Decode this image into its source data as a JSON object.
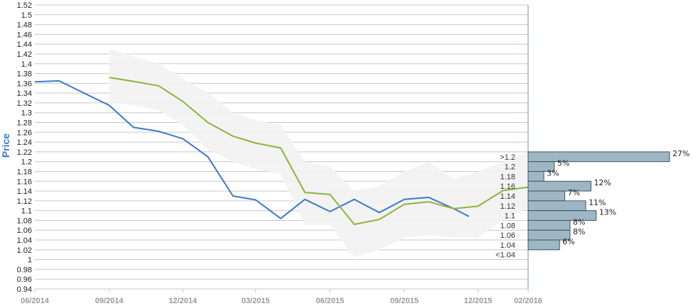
{
  "chart_data": {
    "type": "line",
    "ylabel": "Price",
    "ylim": [
      0.94,
      1.52
    ],
    "ytick_step": 0.02,
    "grid": true,
    "x_ticks": [
      "06/2014",
      "09/2014",
      "12/2014",
      "03/2015",
      "06/2015",
      "09/2015",
      "12/2015",
      "02/2016"
    ],
    "x_tick_dates": [
      "2014-06-01",
      "2014-09-01",
      "2014-12-01",
      "2015-03-01",
      "2015-06-01",
      "2015-09-01",
      "2015-12-01",
      "2016-02-01"
    ],
    "xlim": [
      "2014-06-01",
      "2016-02-01"
    ],
    "series": [
      {
        "color": "#3a7ac8",
        "x": [
          "2014-06-01",
          "2014-07-01",
          "2014-09-01",
          "2014-10-01",
          "2014-11-01",
          "2014-12-01",
          "2015-01-01",
          "2015-02-01",
          "2015-03-01",
          "2015-04-01",
          "2015-05-01",
          "2015-06-01",
          "2015-07-01",
          "2015-08-01",
          "2015-09-01",
          "2015-10-01",
          "2015-11-01",
          "2015-11-20"
        ],
        "y": [
          1.363,
          1.365,
          1.315,
          1.27,
          1.262,
          1.247,
          1.21,
          1.13,
          1.122,
          1.084,
          1.123,
          1.098,
          1.123,
          1.096,
          1.123,
          1.127,
          1.104,
          1.088
        ]
      },
      {
        "color": "#8db43c",
        "x": [
          "2014-09-01",
          "2014-10-01",
          "2014-11-01",
          "2014-12-01",
          "2015-01-01",
          "2015-02-01",
          "2015-03-01",
          "2015-04-01",
          "2015-05-01",
          "2015-06-01",
          "2015-07-01",
          "2015-08-01",
          "2015-09-01",
          "2015-10-01",
          "2015-11-01",
          "2015-12-01",
          "2016-01-01",
          "2016-02-01",
          "2016-02-05"
        ],
        "y": [
          1.372,
          1.364,
          1.355,
          1.323,
          1.28,
          1.252,
          1.238,
          1.228,
          1.137,
          1.133,
          1.072,
          1.082,
          1.113,
          1.118,
          1.104,
          1.109,
          1.141,
          1.148,
          1.135
        ]
      }
    ],
    "band": {
      "color": "#f2f2f2",
      "x": [
        "2014-09-01",
        "2014-10-01",
        "2014-11-01",
        "2014-12-01",
        "2015-01-01",
        "2015-02-01",
        "2015-03-01",
        "2015-04-01",
        "2015-05-01",
        "2015-06-01",
        "2015-07-01",
        "2015-08-01",
        "2015-09-01",
        "2015-10-01",
        "2015-11-01",
        "2015-12-01",
        "2016-01-01",
        "2016-02-01"
      ],
      "upper": [
        1.43,
        1.415,
        1.4,
        1.37,
        1.34,
        1.3,
        1.285,
        1.275,
        1.2,
        1.19,
        1.14,
        1.15,
        1.18,
        1.2,
        1.165,
        1.18,
        1.2,
        1.22
      ],
      "lower": [
        1.32,
        1.315,
        1.305,
        1.275,
        1.225,
        1.2,
        1.185,
        1.175,
        1.07,
        1.07,
        1.005,
        1.02,
        1.045,
        1.05,
        1.045,
        1.045,
        1.08,
        1.105
      ]
    },
    "distribution": {
      "type": "bar",
      "orientation": "horizontal",
      "color": "#9fb6c5",
      "categories": [
        ">1.2",
        "1.2",
        "1.18",
        "1.16",
        "1.14",
        "1.12",
        "1.1",
        "1.08",
        "1.06",
        "1.04",
        "<1.04"
      ],
      "values": [
        27,
        5,
        3,
        12,
        7,
        11,
        13,
        8,
        8,
        6,
        0
      ],
      "labels": [
        "27%",
        "5%",
        "3%",
        "12%",
        "7%",
        "11%",
        "13%",
        "8%",
        "8%",
        "6%",
        ""
      ],
      "y_values": [
        1.21,
        1.19,
        1.17,
        1.15,
        1.13,
        1.11,
        1.09,
        1.07,
        1.05,
        1.03,
        1.01
      ]
    }
  }
}
